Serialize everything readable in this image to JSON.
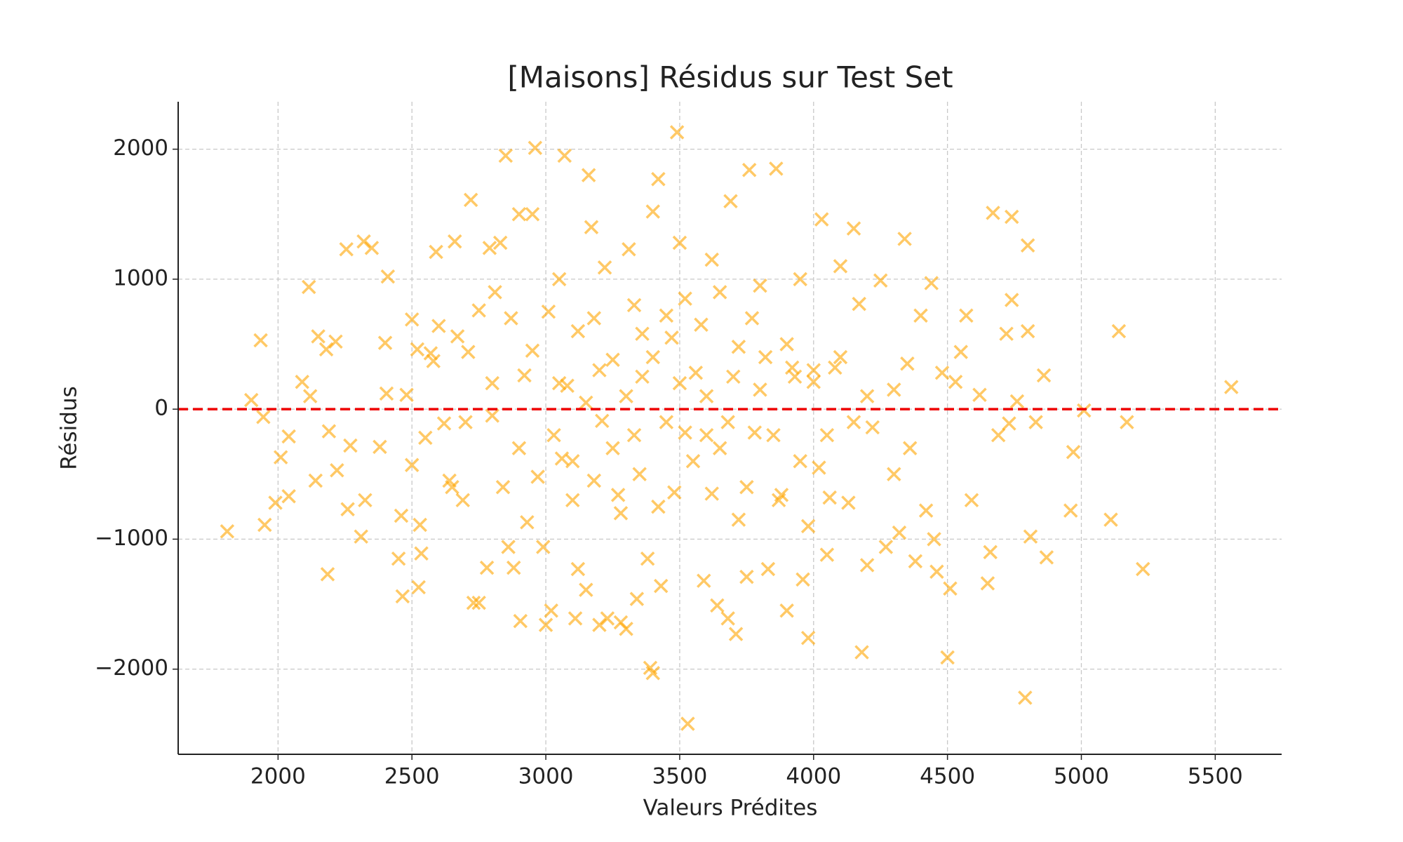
{
  "chart_data": {
    "type": "scatter",
    "title": "[Maisons] Résidus sur Test Set",
    "x_label": "Valeurs Prédites",
    "y_label": "Résidus",
    "color": "#ffa500",
    "alpha": 0.6,
    "grid": true,
    "reference_line": {
      "y": 0,
      "color": "#ee0000"
    },
    "xlim": [
      1627,
      5748
    ],
    "ylim": [
      -2655,
      2365
    ],
    "xticks": [
      2000,
      2500,
      3000,
      3500,
      4000,
      4500,
      5000,
      5500
    ],
    "yticks": [
      {
        "value": -2000,
        "label": "−2000"
      },
      {
        "value": -1000,
        "label": "−1000"
      },
      0,
      1000,
      2000
    ],
    "x": [
      1810,
      1900,
      1935,
      1945,
      1950,
      1990,
      2010,
      2040,
      2040,
      2090,
      2115,
      2120,
      2140,
      2150,
      2180,
      2185,
      2190,
      2215,
      2220,
      2255,
      2260,
      2270,
      2310,
      2320,
      2325,
      2350,
      2380,
      2400,
      2405,
      2410,
      2450,
      2460,
      2465,
      2480,
      2500,
      2500,
      2520,
      2525,
      2530,
      2535,
      2550,
      2570,
      2580,
      2590,
      2600,
      2620,
      2640,
      2660,
      2670,
      2690,
      2710,
      2720,
      2730,
      2750,
      2750,
      2780,
      2790,
      2800,
      2810,
      2830,
      2840,
      2850,
      2860,
      2870,
      2880,
      2900,
      2905,
      2920,
      2930,
      2950,
      2960,
      2970,
      2990,
      3000,
      3010,
      3020,
      3050,
      3060,
      3070,
      3080,
      3100,
      3110,
      3120,
      3150,
      3160,
      3170,
      3180,
      3200,
      3210,
      3220,
      3230,
      3250,
      3270,
      3280,
      3300,
      3310,
      3330,
      3340,
      3360,
      3380,
      3390,
      3400,
      3400,
      3420,
      3430,
      3450,
      3480,
      3490,
      3500,
      3520,
      3530,
      3560,
      3590,
      3620,
      3640,
      3650,
      3680,
      3690,
      3710,
      3720,
      3750,
      3760,
      3780,
      3800,
      3830,
      3860,
      3880,
      3900,
      3920,
      3950,
      3960,
      3980,
      4000,
      4020,
      4030,
      4050,
      4060,
      4080,
      4100,
      4130,
      4150,
      4170,
      4180,
      4200,
      4220,
      4250,
      4270,
      4300,
      4320,
      4340,
      4360,
      4380,
      4400,
      4420,
      4440,
      4450,
      4460,
      4480,
      4500,
      4510,
      4530,
      4550,
      4570,
      4590,
      4620,
      4650,
      4660,
      4670,
      4690,
      4720,
      4730,
      4740,
      4740,
      4760,
      4790,
      4800,
      4800,
      4810,
      4830,
      4860,
      4870,
      4960,
      4970,
      5010,
      5110,
      5140,
      5170,
      5230,
      5560,
      3050,
      3100,
      3150,
      3200,
      3250,
      3300,
      3350,
      3400,
      3450,
      3500,
      3550,
      3600,
      3650,
      3700,
      3750,
      3800,
      3850,
      3900,
      3950,
      4000,
      4050,
      4100,
      4150,
      3120,
      3280,
      3420,
      3580,
      3720,
      3870,
      3030,
      3330,
      3470,
      3620,
      3770,
      3930,
      2900,
      2800,
      2700,
      4200,
      4300,
      3180,
      3520,
      3680,
      3820,
      3980,
      3360,
      3600,
      2950,
      2650,
      4350
    ],
    "values": [
      -940,
      70,
      530,
      -60,
      -890,
      -720,
      -370,
      -210,
      -670,
      210,
      940,
      100,
      -550,
      560,
      460,
      -1270,
      -170,
      520,
      -470,
      1230,
      -770,
      -280,
      -980,
      1290,
      -700,
      1240,
      -290,
      510,
      120,
      1020,
      -1150,
      -820,
      -1440,
      110,
      690,
      -430,
      460,
      -1370,
      -890,
      -1110,
      -220,
      430,
      370,
      1210,
      640,
      -110,
      -550,
      1290,
      560,
      -700,
      440,
      1610,
      -1490,
      -1490,
      760,
      -1220,
      1240,
      -50,
      900,
      1280,
      -600,
      1950,
      -1060,
      700,
      -1220,
      1500,
      -1630,
      260,
      -870,
      1500,
      2010,
      -520,
      -1060,
      -1660,
      750,
      -1550,
      1000,
      -380,
      1950,
      180,
      -700,
      -1610,
      -1230,
      -1390,
      1800,
      1400,
      700,
      -1660,
      -90,
      1090,
      -1610,
      380,
      -660,
      -1640,
      -1690,
      1230,
      -200,
      -1460,
      580,
      -1150,
      -1990,
      -2030,
      1520,
      1770,
      -1360,
      720,
      -640,
      2130,
      1280,
      -180,
      -2420,
      280,
      -1320,
      1150,
      -1510,
      900,
      -1610,
      1600,
      -1730,
      480,
      -1290,
      1840,
      -180,
      950,
      -1230,
      1850,
      -660,
      -1550,
      320,
      1000,
      -1310,
      -1760,
      210,
      -450,
      1460,
      -1120,
      -680,
      320,
      1100,
      -720,
      1390,
      810,
      -1870,
      -1200,
      -140,
      990,
      -1060,
      150,
      -950,
      1310,
      -300,
      -1170,
      720,
      -780,
      970,
      -1000,
      -1250,
      280,
      -1910,
      -1380,
      210,
      440,
      720,
      -700,
      110,
      -1340,
      -1100,
      1510,
      -200,
      580,
      -110,
      1480,
      840,
      60,
      -2220,
      1260,
      600,
      -980,
      -100,
      260,
      -1140,
      -780,
      -330,
      -10,
      -850,
      600,
      -100,
      -1230,
      170,
      200,
      -400,
      50,
      300,
      -300,
      100,
      -500,
      400,
      -100,
      200,
      -400,
      100,
      -300,
      250,
      -600,
      150,
      -200,
      500,
      -400,
      300,
      -200,
      400,
      -100,
      600,
      -800,
      -750,
      650,
      -850,
      -700,
      -200,
      800,
      550,
      -650,
      700,
      250,
      -300,
      200,
      -100,
      100,
      -500,
      -550,
      850,
      -100,
      400,
      -900,
      250,
      -200,
      450,
      -600,
      350
    ]
  }
}
